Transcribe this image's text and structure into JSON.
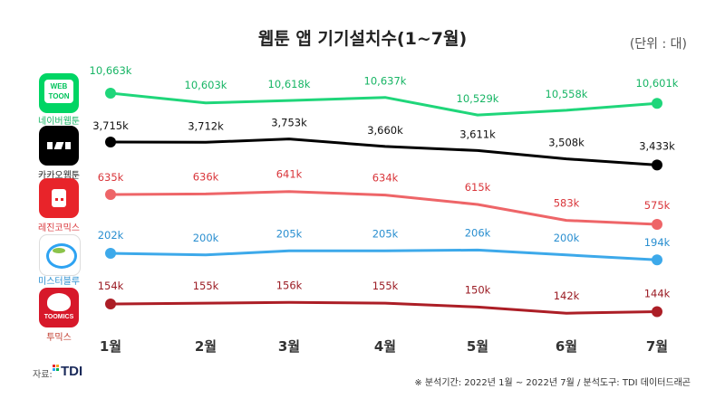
{
  "title": "웹툰 앱 기기설치수(1~7월)",
  "unit": "(단위 : 대)",
  "source_label": "자료:",
  "source_logo": "TDI",
  "footnote": "※ 분석기간: 2022년 1월 ~ 2022년 7월  / 분석도구: TDI 데이터드래곤",
  "apps": [
    {
      "name": "네이버웹툰",
      "icon": "webtoon-logo-icon",
      "icon_text": "WEB TOON",
      "color": "#00d564"
    },
    {
      "name": "카카오웹툰",
      "icon": "kakao-webtoon-logo-icon",
      "color": "#000000"
    },
    {
      "name": "레진코믹스",
      "icon": "lezhin-logo-icon",
      "color": "#e8242a"
    },
    {
      "name": "미스터블루",
      "icon": "mrblue-logo-icon",
      "color": "#2ea3f2"
    },
    {
      "name": "투믹스",
      "icon": "toomics-logo-icon",
      "icon_text": "TOOMICS",
      "color": "#d7182a"
    }
  ],
  "chart_data": {
    "type": "line",
    "categories": [
      "1월",
      "2월",
      "3월",
      "4월",
      "5월",
      "6월",
      "7월"
    ],
    "series": [
      {
        "name": "네이버웹툰",
        "values": [
          10663,
          10603,
          10618,
          10637,
          10529,
          10558,
          10601
        ],
        "labels": [
          "10,663k",
          "10,603k",
          "10,618k",
          "10,637k",
          "10,529k",
          "10,558k",
          "10,601k"
        ],
        "color": "#1fd67a",
        "label_color": "#18b565"
      },
      {
        "name": "카카오웹툰",
        "values": [
          3715,
          3712,
          3753,
          3660,
          3611,
          3508,
          3433
        ],
        "labels": [
          "3,715k",
          "3,712k",
          "3,753k",
          "3,660k",
          "3,611k",
          "3,508k",
          "3,433k"
        ],
        "color": "#000000",
        "label_color": "#111111"
      },
      {
        "name": "레진코믹스",
        "values": [
          635,
          636,
          641,
          634,
          615,
          583,
          575
        ],
        "labels": [
          "635k",
          "636k",
          "641k",
          "634k",
          "615k",
          "583k",
          "575k"
        ],
        "color": "#ee6568",
        "label_color": "#d9363b"
      },
      {
        "name": "미스터블루",
        "values": [
          202,
          200,
          205,
          205,
          206,
          200,
          194
        ],
        "labels": [
          "202k",
          "200k",
          "205k",
          "205k",
          "206k",
          "200k",
          "194k"
        ],
        "color": "#3da9ea",
        "label_color": "#2a8fd0"
      },
      {
        "name": "투믹스",
        "values": [
          154,
          155,
          156,
          155,
          150,
          142,
          144
        ],
        "labels": [
          "154k",
          "155k",
          "156k",
          "155k",
          "150k",
          "142k",
          "144k"
        ],
        "color": "#ac1e26",
        "label_color": "#9b1c24"
      }
    ]
  }
}
